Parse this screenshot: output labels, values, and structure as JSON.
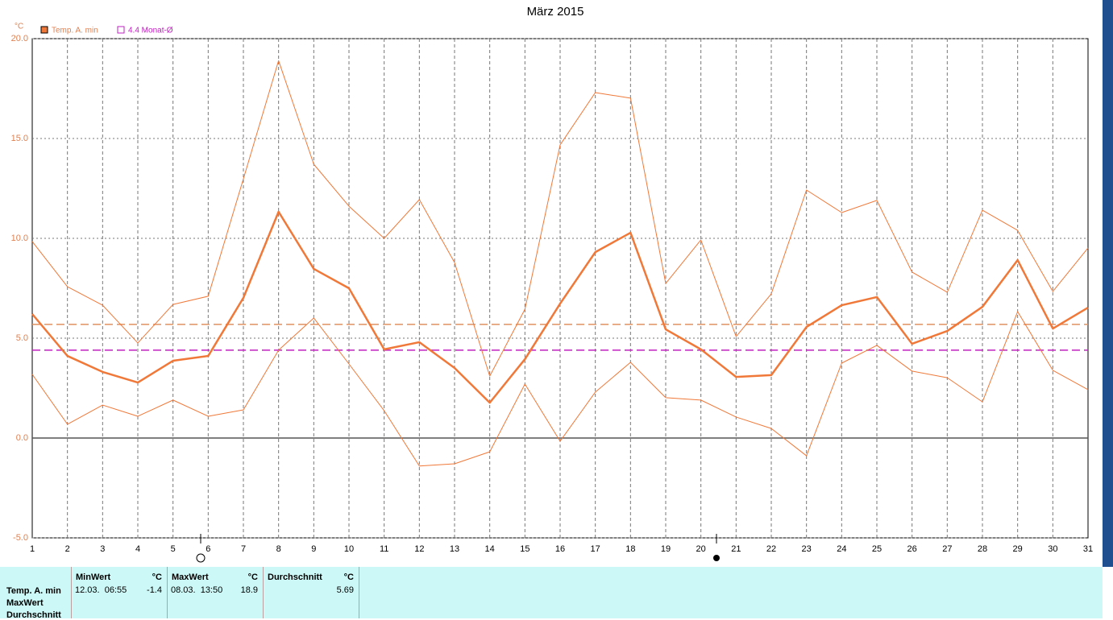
{
  "chart_data": {
    "type": "line",
    "title": "März 2015",
    "y_unit": "°C",
    "x": [
      1,
      2,
      3,
      4,
      5,
      6,
      7,
      8,
      9,
      10,
      11,
      12,
      13,
      14,
      15,
      16,
      17,
      18,
      19,
      20,
      21,
      22,
      23,
      24,
      25,
      26,
      27,
      28,
      29,
      30,
      31
    ],
    "xlim": [
      1,
      31
    ],
    "xticks": [
      1,
      2,
      3,
      4,
      5,
      6,
      7,
      8,
      9,
      10,
      11,
      12,
      13,
      14,
      15,
      16,
      17,
      18,
      19,
      20,
      21,
      22,
      23,
      24,
      25,
      26,
      27,
      28,
      29,
      30,
      31
    ],
    "ylim": [
      -5,
      20
    ],
    "yticks": [
      {
        "value": -5,
        "label": "-5.0"
      },
      {
        "value": 0,
        "label": "0.0"
      },
      {
        "value": 5,
        "label": "5.0"
      },
      {
        "value": 10,
        "label": "10.0"
      },
      {
        "value": 15,
        "label": "15.0"
      },
      {
        "value": 20,
        "label": "20.0"
      }
    ],
    "grid": true,
    "series": [
      {
        "name": "Temp. A. min",
        "color": "#f07838",
        "style": "thick",
        "values": [
          6.21,
          4.11,
          3.31,
          2.78,
          3.87,
          4.11,
          7.02,
          11.33,
          8.47,
          7.5,
          4.44,
          4.8,
          3.51,
          1.77,
          3.95,
          6.73,
          9.31,
          10.28,
          5.44,
          4.44,
          3.06,
          3.15,
          5.56,
          6.65,
          7.06,
          4.72,
          5.36,
          6.57,
          8.91,
          5.48,
          6.53
        ]
      },
      {
        "color": "#f07838",
        "style": "thin",
        "values": [
          9.84,
          7.58,
          6.65,
          4.76,
          6.69,
          7.1,
          12.98,
          18.9,
          13.71,
          11.61,
          10.0,
          11.94,
          8.79,
          3.1,
          6.45,
          14.68,
          17.3,
          17.02,
          7.74,
          9.92,
          5.08,
          7.22,
          12.42,
          11.29,
          11.9,
          8.31,
          7.3,
          11.41,
          10.4,
          7.34,
          9.52
        ]
      },
      {
        "color": "#f07838",
        "style": "thin",
        "values": [
          3.19,
          0.69,
          1.65,
          1.09,
          1.9,
          1.09,
          1.41,
          4.4,
          6.01,
          3.71,
          1.37,
          -1.4,
          -1.29,
          -0.69,
          2.7,
          -0.16,
          2.3,
          3.79,
          2.02,
          1.9,
          1.05,
          0.48,
          -0.89,
          3.75,
          4.64,
          3.35,
          3.02,
          1.81,
          6.33,
          3.39,
          2.42
        ]
      }
    ],
    "reference_lines": [
      {
        "value": 5.69,
        "color": "#e09060"
      },
      {
        "value": 4.4,
        "label": "4.4 Monat-Ø",
        "color": "#c020c0"
      }
    ]
  },
  "stats_table": {
    "row_labels": [
      "Temp. A. min",
      "MaxWert",
      "Durchschnitt"
    ],
    "columns": [
      {
        "header": "MinWert",
        "unit": "°C",
        "date": "12.03.  06:55",
        "value": -1.4
      },
      {
        "header": "MaxWert",
        "unit": "°C",
        "date": "08.03.  13:50",
        "value": 18.9
      },
      {
        "header": "Durchschnitt",
        "unit": "°C",
        "value": 5.69
      }
    ]
  }
}
